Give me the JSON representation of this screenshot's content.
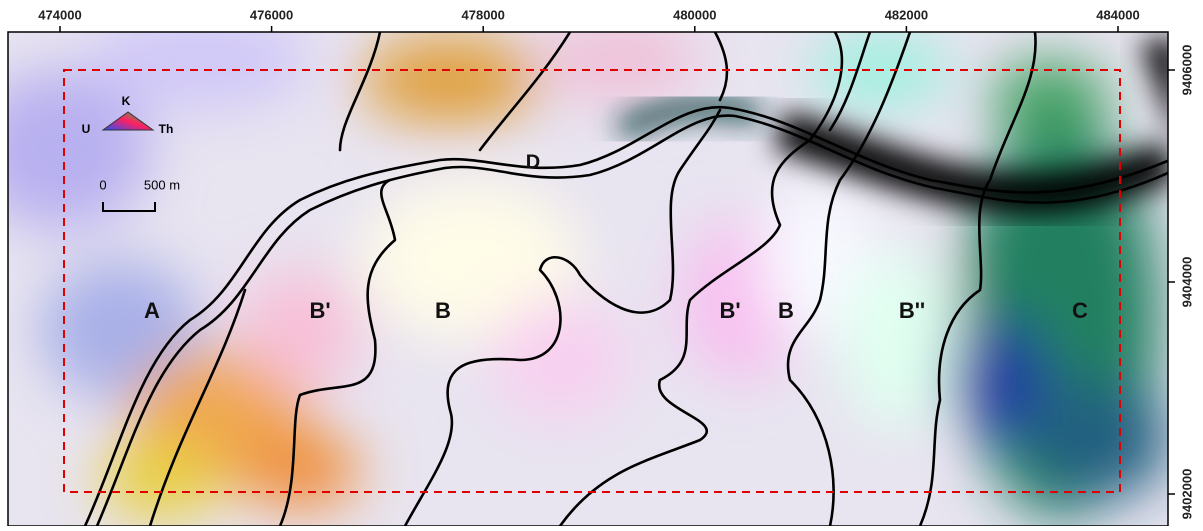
{
  "x_ticks": [
    474000,
    476000,
    478000,
    480000,
    482000,
    484000
  ],
  "y_ticks": [
    9406000,
    9404000,
    9402000
  ],
  "zones": [
    "A",
    "B'",
    "B",
    "B'",
    "B",
    "B''",
    "C",
    "D"
  ],
  "legend": {
    "top": "K",
    "left": "U",
    "right": "Th"
  },
  "scale": {
    "start": 0,
    "end_label": "500 m"
  }
}
